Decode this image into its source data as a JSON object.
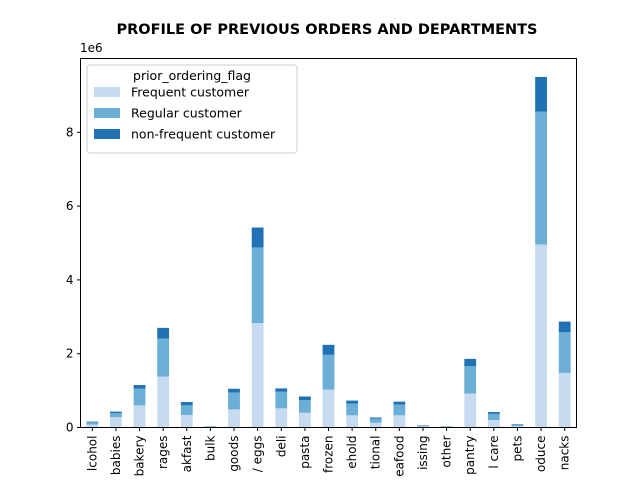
{
  "chart_data": {
    "type": "bar",
    "stacked": true,
    "title": "PROFILE OF PREVIOUS ORDERS AND DEPARTMENTS",
    "xlabel": "",
    "ylabel": "",
    "y_multiplier_label": "1e6",
    "ylim": [
      0,
      10000000
    ],
    "yticks": [
      0,
      2000000,
      4000000,
      6000000,
      8000000
    ],
    "ytick_labels": [
      "0",
      "2",
      "4",
      "6",
      "8"
    ],
    "grid": false,
    "categories": [
      "alcohol",
      "babies",
      "bakery",
      "beverages",
      "breakfast",
      "bulk",
      "canned goods",
      "dairy eggs",
      "deli",
      "dry goods pasta",
      "frozen",
      "household",
      "international",
      "meat seafood",
      "missing",
      "other",
      "pantry",
      "personal care",
      "pets",
      "produce",
      "snacks"
    ],
    "category_labels_visible": [
      "lcohol",
      "babies",
      "bakery",
      "rages",
      "akfast",
      "bulk",
      "goods",
      "/ eggs",
      "deli",
      "pasta",
      "frozen",
      "ehold",
      "tional",
      "eafood",
      "issing",
      "other",
      "pantry",
      "l care",
      "pets",
      "oduce",
      "nacks"
    ],
    "legend": {
      "title": "prior_ordering_flag",
      "placement": "upper left"
    },
    "series": [
      {
        "name": "Frequent customer",
        "color": "#c6dbef",
        "values": [
          80000,
          280000,
          600000,
          1380000,
          340000,
          20000,
          490000,
          2830000,
          520000,
          400000,
          1030000,
          330000,
          130000,
          330000,
          30000,
          20000,
          920000,
          200000,
          40000,
          4960000,
          1480000
        ]
      },
      {
        "name": "Regular customer",
        "color": "#6baed6",
        "values": [
          60000,
          110000,
          450000,
          1030000,
          260000,
          10000,
          460000,
          2050000,
          450000,
          340000,
          940000,
          320000,
          110000,
          290000,
          20000,
          10000,
          740000,
          170000,
          40000,
          3600000,
          1100000
        ]
      },
      {
        "name": "non-frequent customer",
        "color": "#2171b5",
        "values": [
          20000,
          40000,
          100000,
          290000,
          90000,
          5000,
          100000,
          540000,
          90000,
          100000,
          270000,
          80000,
          30000,
          80000,
          10000,
          5000,
          200000,
          50000,
          10000,
          940000,
          290000
        ]
      }
    ]
  }
}
